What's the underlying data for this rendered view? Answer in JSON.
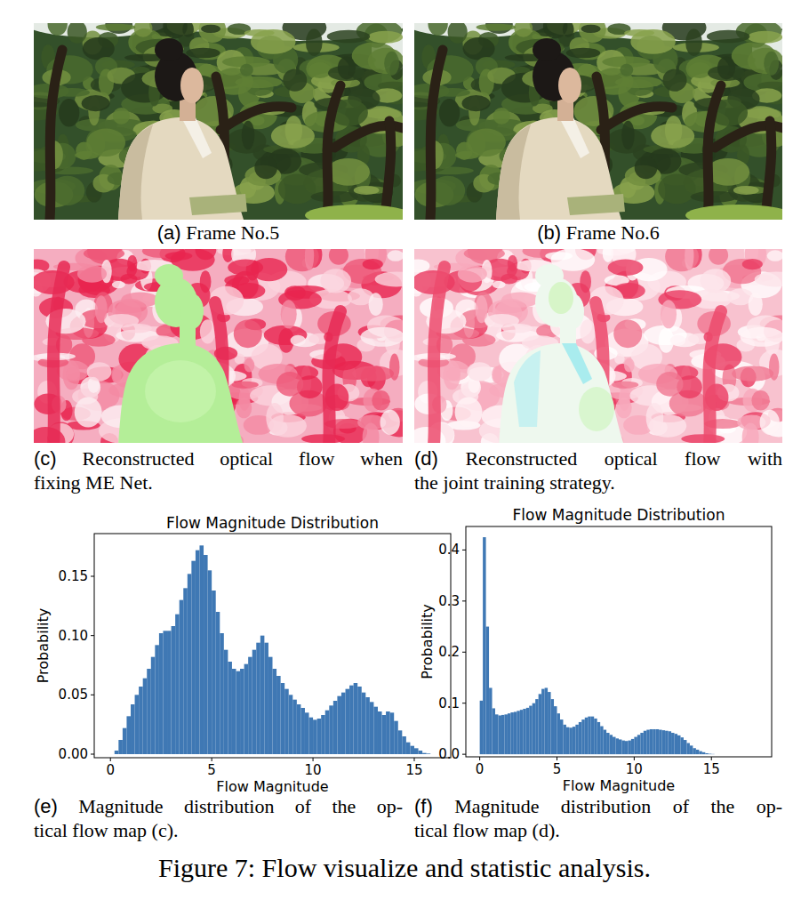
{
  "chart_data": [
    {
      "type": "histogram",
      "title": "Flow Magnitude Distribution",
      "x_label": "Flow Magnitude",
      "y_label": "Probability",
      "color": "#3f78b4",
      "grid": false,
      "xlim": [
        -0.8,
        16.8
      ],
      "ylim": [
        -0.003,
        0.186
      ],
      "xticks": [
        0,
        5,
        10,
        15
      ],
      "yticks": [
        {
          "value": 0,
          "label": "0.00"
        },
        {
          "value": 0.05,
          "label": "0.05"
        },
        {
          "value": 0.1,
          "label": "0.10"
        },
        {
          "value": 0.15,
          "label": "0.15"
        }
      ],
      "bins": [
        0,
        0.2,
        0.4,
        0.6,
        0.8,
        1,
        1.2,
        1.4,
        1.6,
        1.8,
        2,
        2.2,
        2.4,
        2.6,
        2.8,
        3,
        3.2,
        3.4,
        3.6,
        3.8,
        4,
        4.2,
        4.4,
        4.6,
        4.8,
        5,
        5.2,
        5.4,
        5.6,
        5.8,
        6,
        6.2,
        6.4,
        6.6,
        6.8,
        7,
        7.2,
        7.4,
        7.6,
        7.8,
        8,
        8.2,
        8.4,
        8.6,
        8.8,
        9,
        9.2,
        9.4,
        9.6,
        9.8,
        10,
        10.2,
        10.4,
        10.6,
        10.8,
        11,
        11.2,
        11.4,
        11.6,
        11.8,
        12,
        12.2,
        12.4,
        12.6,
        12.8,
        13,
        13.2,
        13.4,
        13.6,
        13.8,
        14,
        14.2,
        14.4,
        14.6,
        14.8,
        15,
        15.2,
        15.4,
        15.6,
        15.8,
        16
      ],
      "values": [
        0,
        0.003,
        0.012,
        0.022,
        0.032,
        0.042,
        0.05,
        0.057,
        0.064,
        0.072,
        0.082,
        0.092,
        0.102,
        0.104,
        0.104,
        0.108,
        0.118,
        0.13,
        0.14,
        0.152,
        0.163,
        0.172,
        0.176,
        0.168,
        0.155,
        0.138,
        0.12,
        0.102,
        0.088,
        0.078,
        0.072,
        0.07,
        0.072,
        0.076,
        0.082,
        0.088,
        0.094,
        0.1,
        0.094,
        0.082,
        0.072,
        0.066,
        0.06,
        0.055,
        0.05,
        0.046,
        0.042,
        0.039,
        0.035,
        0.031,
        0.029,
        0.03,
        0.033,
        0.037,
        0.041,
        0.045,
        0.049,
        0.052,
        0.055,
        0.058,
        0.06,
        0.057,
        0.052,
        0.048,
        0.044,
        0.04,
        0.036,
        0.033,
        0.036,
        0.035,
        0.028,
        0.02,
        0.015,
        0.01,
        0.007,
        0.005,
        0.003,
        0.001,
        0.0005,
        0
      ]
    },
    {
      "type": "histogram",
      "title": "Flow Magnitude Distribution",
      "x_label": "Flow Magnitude",
      "y_label": "Probability",
      "color": "#3f78b4",
      "grid": false,
      "xlim": [
        -0.9,
        18.9
      ],
      "ylim": [
        -0.005,
        0.446
      ],
      "xticks": [
        0,
        5,
        10,
        15
      ],
      "yticks": [
        {
          "value": 0,
          "label": "0.0"
        },
        {
          "value": 0.1,
          "label": "0.1"
        },
        {
          "value": 0.2,
          "label": "0.2"
        },
        {
          "value": 0.3,
          "label": "0.3"
        },
        {
          "value": 0.4,
          "label": "0.4"
        }
      ],
      "bins": [
        0,
        0.2,
        0.4,
        0.6,
        0.8,
        1,
        1.2,
        1.4,
        1.6,
        1.8,
        2,
        2.2,
        2.4,
        2.6,
        2.8,
        3,
        3.2,
        3.4,
        3.6,
        3.8,
        4,
        4.2,
        4.4,
        4.6,
        4.8,
        5,
        5.2,
        5.4,
        5.6,
        5.8,
        6,
        6.2,
        6.4,
        6.6,
        6.8,
        7,
        7.2,
        7.4,
        7.6,
        7.8,
        8,
        8.2,
        8.4,
        8.6,
        8.8,
        9,
        9.2,
        9.4,
        9.6,
        9.8,
        10,
        10.2,
        10.4,
        10.6,
        10.8,
        11,
        11.2,
        11.4,
        11.6,
        11.8,
        12,
        12.2,
        12.4,
        12.6,
        12.8,
        13,
        13.2,
        13.4,
        13.6,
        13.8,
        14,
        14.2,
        14.4,
        14.6,
        14.8,
        15,
        15.2,
        15.4,
        15.6,
        15.8,
        16
      ],
      "values": [
        0.105,
        0.425,
        0.25,
        0.13,
        0.09,
        0.078,
        0.076,
        0.077,
        0.078,
        0.08,
        0.082,
        0.083,
        0.085,
        0.087,
        0.089,
        0.091,
        0.095,
        0.1,
        0.108,
        0.118,
        0.128,
        0.13,
        0.122,
        0.108,
        0.094,
        0.08,
        0.068,
        0.058,
        0.053,
        0.052,
        0.054,
        0.058,
        0.063,
        0.068,
        0.072,
        0.074,
        0.074,
        0.07,
        0.063,
        0.055,
        0.048,
        0.042,
        0.038,
        0.034,
        0.031,
        0.029,
        0.027,
        0.026,
        0.027,
        0.03,
        0.034,
        0.038,
        0.042,
        0.046,
        0.048,
        0.049,
        0.049,
        0.049,
        0.048,
        0.047,
        0.046,
        0.045,
        0.042,
        0.04,
        0.037,
        0.033,
        0.028,
        0.022,
        0.017,
        0.012,
        0.009,
        0.006,
        0.004,
        0.002,
        0.001,
        0.0005,
        0,
        0,
        0,
        0
      ]
    }
  ],
  "panels": [
    {
      "label": "(a)",
      "lines": [
        "Frame No.5"
      ]
    },
    {
      "label": "(b)",
      "lines": [
        "Frame No.6"
      ]
    },
    {
      "label": "(c)",
      "lines": [
        "Reconstructed optical flow when",
        "fixing ME Net."
      ]
    },
    {
      "label": "(d)",
      "lines": [
        "Reconstructed optical flow with",
        "the joint training strategy."
      ]
    },
    {
      "label": "(e)",
      "lines": [
        "Magnitude distribution of the op-",
        "tical flow map (c)."
      ]
    },
    {
      "label": "(f)",
      "lines": [
        "Magnitude distribution of the op-",
        "tical flow map (d)."
      ]
    }
  ],
  "caption": "Figure 7: Flow visualize and statistic analysis."
}
